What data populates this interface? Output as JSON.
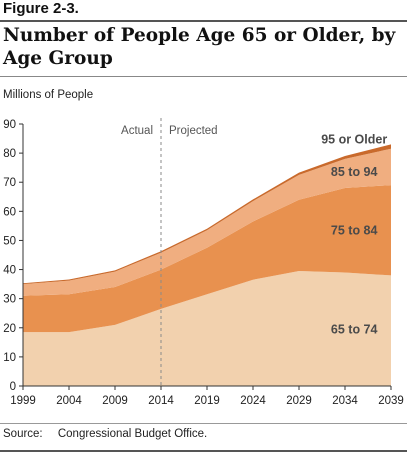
{
  "figure_label": "Figure 2-3.",
  "title": "Number of People Age 65 or Older, by Age Group",
  "source": {
    "label": "Source:",
    "text": "Congressional Budget Office."
  },
  "chart_data": {
    "type": "area",
    "stacked": true,
    "ylabel": "Millions of People",
    "ylim": [
      0,
      90
    ],
    "yticks": [
      0,
      10,
      20,
      30,
      40,
      50,
      60,
      70,
      80,
      90
    ],
    "xlim": [
      1999,
      2039
    ],
    "xticks": [
      1999,
      2004,
      2009,
      2014,
      2019,
      2024,
      2029,
      2034,
      2039
    ],
    "divider": {
      "x": 2014,
      "left_label": "Actual",
      "right_label": "Projected"
    },
    "grid": false,
    "x": [
      1999,
      2004,
      2009,
      2014,
      2019,
      2024,
      2029,
      2034,
      2039
    ],
    "series": [
      {
        "name": "65 to 74",
        "color": "#f2d1ae",
        "values": [
          18.5,
          18.5,
          21,
          26.5,
          31.5,
          36.5,
          39.5,
          39,
          38
        ]
      },
      {
        "name": "75 to 84",
        "color": "#e8914f",
        "values": [
          12.5,
          13,
          13,
          13.5,
          16,
          20,
          24.5,
          29,
          31
        ]
      },
      {
        "name": "85 to 94",
        "color": "#f0ae80",
        "values": [
          4,
          4.7,
          5.3,
          5.8,
          6,
          7,
          8.5,
          10,
          12.5
        ]
      },
      {
        "name": "95 or Older",
        "color": "#c96a2c",
        "values": [
          0.3,
          0.4,
          0.4,
          0.5,
          0.5,
          0.6,
          0.8,
          1.0,
          1.5
        ]
      }
    ]
  }
}
